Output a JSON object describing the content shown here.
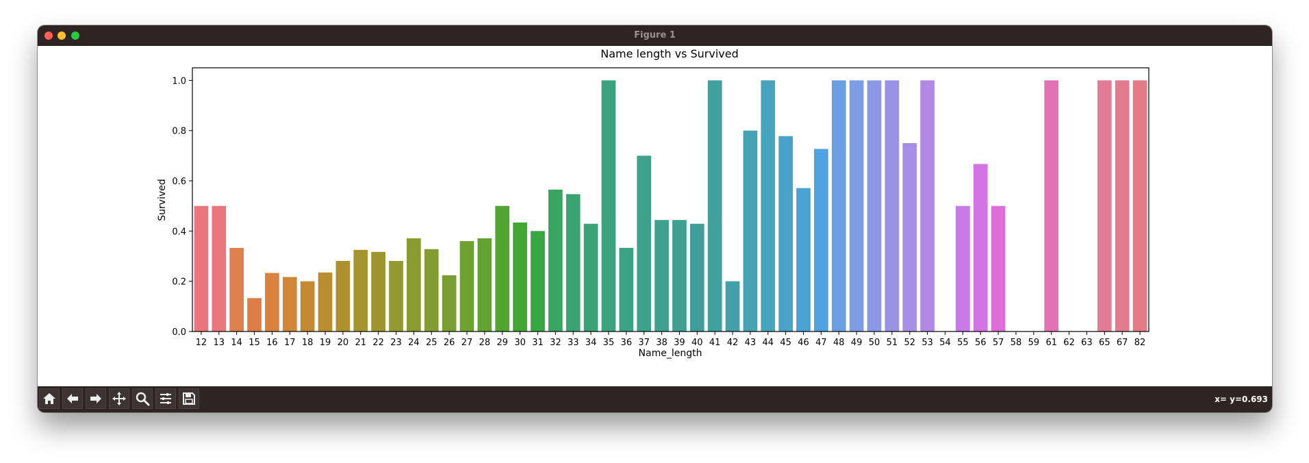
{
  "window": {
    "title": "Figure 1"
  },
  "status": {
    "coords": "x= y=0.693"
  },
  "toolbar": {
    "icons": [
      "home-icon",
      "back-arrow-icon",
      "forward-arrow-icon",
      "pan-icon",
      "zoom-icon",
      "configure-icon",
      "save-icon"
    ]
  },
  "chart_data": {
    "type": "bar",
    "title": "Name length vs Survived",
    "xlabel": "Name_length",
    "ylabel": "Survived",
    "ylim": [
      0,
      1.05
    ],
    "yticks": [
      "0.0",
      "0.2",
      "0.4",
      "0.6",
      "0.8",
      "1.0"
    ],
    "grid": false,
    "categories": [
      "12",
      "13",
      "14",
      "15",
      "16",
      "17",
      "18",
      "19",
      "20",
      "21",
      "22",
      "23",
      "24",
      "25",
      "26",
      "27",
      "28",
      "29",
      "30",
      "31",
      "32",
      "33",
      "34",
      "35",
      "36",
      "37",
      "38",
      "39",
      "40",
      "41",
      "42",
      "43",
      "44",
      "45",
      "46",
      "47",
      "48",
      "49",
      "50",
      "51",
      "52",
      "53",
      "54",
      "55",
      "56",
      "57",
      "58",
      "59",
      "61",
      "62",
      "63",
      "65",
      "67",
      "82"
    ],
    "values": [
      0.5,
      0.5,
      0.333,
      0.133,
      0.233,
      0.217,
      0.2,
      0.235,
      0.281,
      0.325,
      0.317,
      0.281,
      0.371,
      0.328,
      0.224,
      0.36,
      0.371,
      0.5,
      0.434,
      0.4,
      0.565,
      0.547,
      0.429,
      1.0,
      0.333,
      0.7,
      0.444,
      0.444,
      0.429,
      1.0,
      0.2,
      0.8,
      1.0,
      0.778,
      0.571,
      0.727,
      1.0,
      1.0,
      1.0,
      1.0,
      0.75,
      1.0,
      0,
      0.5,
      0.667,
      0.5,
      0,
      0,
      1.0,
      0,
      0,
      1.0,
      1.0,
      1.0
    ],
    "colors": [
      "#e8767c",
      "#e8787e",
      "#dd7f4f",
      "#dc7e45",
      "#d9813f",
      "#d18638",
      "#c48a33",
      "#b98e31",
      "#ae912f",
      "#a5942e",
      "#9d962f",
      "#939a31",
      "#8a9c31",
      "#819d31",
      "#799f32",
      "#6fa132",
      "#62a332",
      "#52a432",
      "#42a632",
      "#38a742",
      "#38a661",
      "#3aa371",
      "#3ba278",
      "#3ba47e",
      "#3ca284",
      "#3ea18a",
      "#3ea08f",
      "#3f9f93",
      "#409e98",
      "#419f9f",
      "#44a0a8",
      "#45a3b4",
      "#47a4bd",
      "#48a3c6",
      "#4aa3d2",
      "#51a2df",
      "#6b9fe2",
      "#7c9ce4",
      "#8b98e6",
      "#9993e6",
      "#a68de6",
      "#b188e6",
      "#bd81e6",
      "#c87ae6",
      "#d473e4",
      "#de6fd8",
      "#e26fcb",
      "#e370c0",
      "#e372b4",
      "#e375a9",
      "#e377a0",
      "#e37a98",
      "#e37b8f",
      "#e37c86"
    ]
  }
}
